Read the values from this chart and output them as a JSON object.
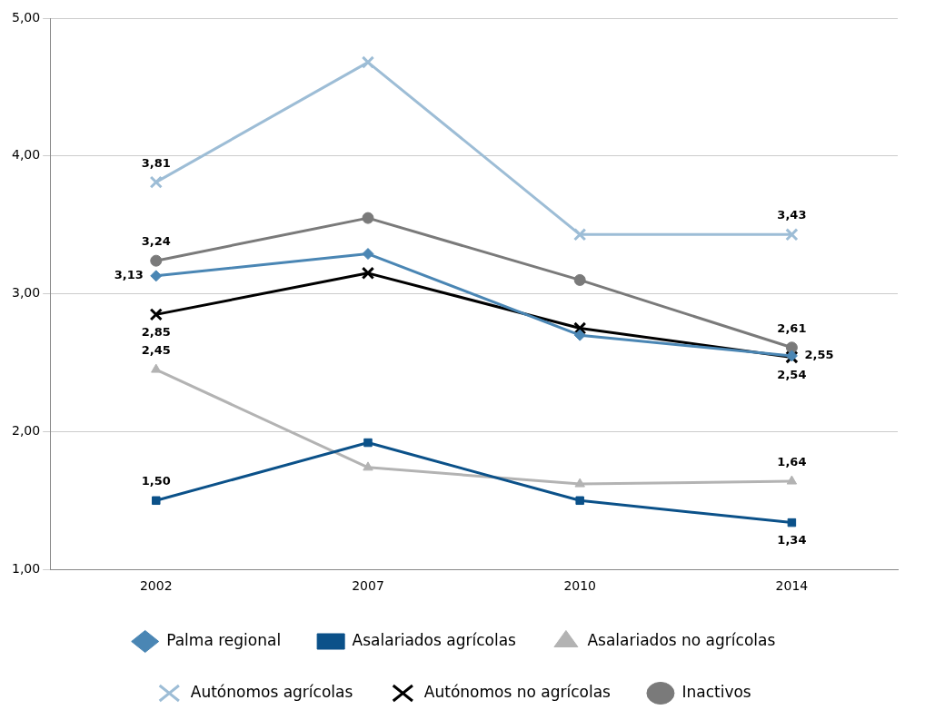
{
  "chart_data": {
    "type": "line",
    "categories": [
      "2002",
      "2007",
      "2010",
      "2014"
    ],
    "series": [
      {
        "name": "Palma regional",
        "color": "#4a86b4",
        "marker": "diamond",
        "values": [
          3.13,
          3.29,
          2.7,
          2.55
        ],
        "value_labels": [
          "3,13",
          null,
          null,
          "2,55"
        ]
      },
      {
        "name": "Asalariados agrícolas",
        "color": "#0b5189",
        "marker": "square",
        "values": [
          1.5,
          1.92,
          1.5,
          1.34
        ],
        "value_labels": [
          "1,50",
          null,
          null,
          "1,34"
        ]
      },
      {
        "name": "Asalariados no agrícolas",
        "color": "#b3b3b3",
        "marker": "triangle",
        "values": [
          2.45,
          1.74,
          1.62,
          1.64
        ],
        "value_labels": [
          "2,45",
          null,
          null,
          "1,64"
        ]
      },
      {
        "name": "Autónomos agrícolas",
        "color": "#9dbdd6",
        "marker": "cross",
        "values": [
          3.81,
          4.68,
          3.43,
          3.43
        ],
        "value_labels": [
          "3,81",
          null,
          null,
          "3,43"
        ]
      },
      {
        "name": "Autónomos no agrícolas",
        "color": "#000000",
        "marker": "cross",
        "values": [
          2.85,
          3.15,
          2.75,
          2.54
        ],
        "value_labels": [
          "2,85",
          null,
          null,
          "2,54"
        ]
      },
      {
        "name": "Inactivos",
        "color": "#7a7a7a",
        "marker": "circle",
        "values": [
          3.24,
          3.55,
          3.1,
          2.61
        ],
        "value_labels": [
          "3,24",
          null,
          null,
          "2,61"
        ]
      }
    ],
    "ylim": [
      1,
      5
    ],
    "yticks": [
      {
        "value": 1,
        "label": "1,00"
      },
      {
        "value": 2,
        "label": "2,00"
      },
      {
        "value": 3,
        "label": "3,00"
      },
      {
        "value": 4,
        "label": "4,00"
      },
      {
        "value": 5,
        "label": "5,00"
      }
    ],
    "grid": "y",
    "legend": "bottom",
    "line_style": "solid"
  }
}
